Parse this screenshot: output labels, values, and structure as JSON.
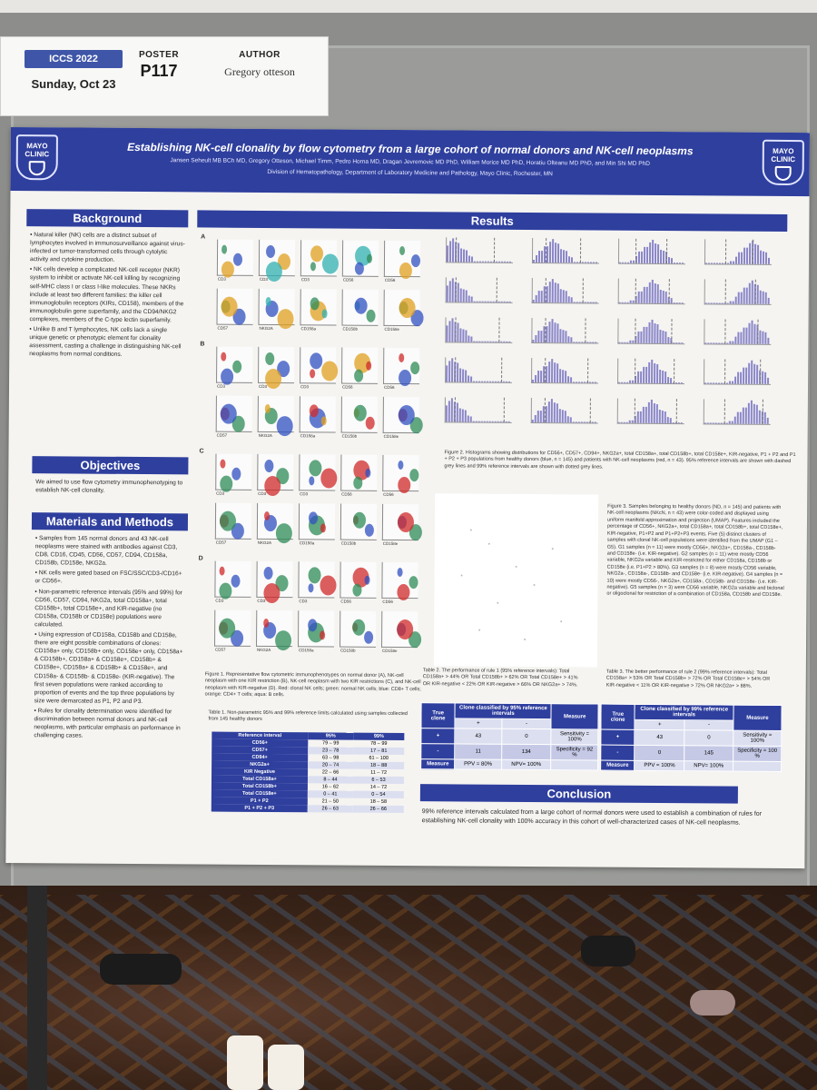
{
  "header_card": {
    "conference": "ICCS 2022",
    "date": "Sunday, Oct 23",
    "poster_label": "POSTER",
    "poster_number": "P117",
    "author_label": "AUTHOR",
    "author_name": "Gregory otteson"
  },
  "poster": {
    "logo_text": "MAYO CLINIC",
    "title": "Establishing NK-cell clonality by flow cytometry from a large cohort of normal donors and NK-cell neoplasms",
    "authors": "Jansen Seheult MB BCh MD, Gregory Otteson, Michael Timm, Pedro Horna MD, Dragan Jevremovic MD PhD, William Morice MD PhD, Horatiu Olteanu MD PhD, and Min Shi MD PhD",
    "affiliation": "Division of Hematopathology, Department of Laboratory Medicine and Pathology, Mayo Clinic, Rochester, MN",
    "background": {
      "heading": "Background",
      "bullets": [
        "Natural killer (NK) cells are a distinct subset of lymphocytes involved in immunosurveillance against virus-infected or tumor-transformed cells through cytolytic activity and cytokine production.",
        "NK cells develop a complicated NK-cell receptor (NKR) system to inhibit or activate NK-cell killing by recognizing self-MHC class I or class I-like molecules. These NKRs include at least two different families: the killer cell immunoglobulin receptors (KIRs, CD158), members of the immunoglobulin gene superfamily, and the CD94/NKG2 complexes, members of the C-type lectin superfamily.",
        "Unlike B and T lymphocytes, NK cells lack a single unique genetic or phenotypic element for clonality assessment, casting a challenge in distinguishing NK-cell neoplasms from normal conditions."
      ]
    },
    "objectives": {
      "heading": "Objectives",
      "text": "We aimed to use flow cytometry immunophenotyping to establish NK-cell clonality."
    },
    "methods": {
      "heading": "Materials and Methods",
      "bullets": [
        "Samples from 145 normal donors and 43 NK-cell neoplasms were stained with antibodies against CD3, CD8, CD16, CD45, CD56, CD57, CD94, CD158a, CD158b, CD158e, NKG2a.",
        "NK cells were gated based on FSC/SSC/CD3-/CD16+ or CD56+.",
        "Non-parametric reference intervals (95% and 99%) for CD56, CD57, CD94, NKG2a, total CD158a+, total CD158b+, total CD158e+, and KIR-negative (no CD158a, CD158b or CD158e) populations were calculated.",
        "Using expression of CD158a, CD158b and CD158e, there are eight possible combinations of clones: CD158a+ only, CD158b+ only, CD158e+ only, CD158a+ & CD158b+, CD158a+ & CD158e+, CD158b+ & CD158e+, CD158a+ & CD158b+ & CD158e+, and CD158a- & CD158b- & CD158e- (KIR-negative). The first seven populations were ranked according to proportion of events and the top three populations by size were demarcated as P1, P2 and P3.",
        "Rules for clonality determination were identified for discrimination between normal donors and NK-cell neoplasms, with particular emphasis on performance in challenging cases."
      ]
    },
    "results": {
      "heading": "Results",
      "figure1": {
        "row_labels": [
          "A",
          "B",
          "C",
          "D"
        ],
        "axis_labels_row1": [
          "CD3",
          "CD3",
          "CD3",
          "CD56",
          "CD56"
        ],
        "axis_labels_row2": [
          "CD57",
          "NKG2A",
          "CD158a",
          "CD158b",
          "CD158e"
        ],
        "caption": "Figure 1. Representative flow cytometric immunophenotypes on normal donor (A), NK-cell neoplasm with one KIR restriction (B), NK-cell neoplasm with two KIR restrictions (C), and NK-cell neoplasm with KIR-negative (D). Red: clonal NK cells; green: normal NK cells; blue: CD8+ T cells; orange: CD4+ T cells; aqua: B cells."
      },
      "table1": {
        "caption": "Table 1. Non-parametric 95% and 99% reference limits calculated using samples collected from 145 healthy donors",
        "headers": [
          "Reference interval",
          "95%",
          "99%"
        ],
        "rows": [
          [
            "CD56+",
            "79 – 99",
            "78 – 99"
          ],
          [
            "CD57+",
            "23 – 78",
            "17 – 81"
          ],
          [
            "CD94+",
            "63 – 98",
            "61 – 100"
          ],
          [
            "NKG2a+",
            "20 – 74",
            "18 – 88"
          ],
          [
            "KIR Negative",
            "22 – 66",
            "11 – 72"
          ],
          [
            "Total CD158a+",
            "8 – 44",
            "6 – 53"
          ],
          [
            "Total CD158b+",
            "16 – 62",
            "14 – 72"
          ],
          [
            "Total CD158e+",
            "0 – 41",
            "0 – 54"
          ],
          [
            "P1 + P2",
            "21 – 50",
            "18 – 58"
          ],
          [
            "P1 + P2 + P3",
            "26 – 63",
            "26 – 66"
          ]
        ]
      },
      "figure2_caption": "Figure 2. Histograms showing distributions for CD56+, CD57+, CD94+, NKG2a+, total CD158a+, total CD158b+, total CD158e+, KIR-negative, P1 + P2 and P1 + P2 + P3 populations from healthy donors (blue, n = 145) and patients with NK-cell neoplasms (red, n = 43). 95% reference intervals are shown with dashed grey lines and 99% reference intervals are shown with dotted grey lines.",
      "figure3_caption": "Figure 3. Samples belonging to healthy donors (ND, n = 145) and patients with NK-cell neoplasms (NKcN, n = 43) were color-coded and displayed using uniform manifold approximation and projection (UMAP). Features included the percentage of CD56+, NKG2a+, total CD158a+, total CD158b+, total CD158e+, KIR-negative, P1+P2 and P1+P2+P3 events. Five (5) distinct clusters of samples with clonal NK-cell populations were identified from the UMAP (G1 – G5). G1 samples (n = 11) were mostly CD56+, NKG2a+, CD158a-, CD158b- and CD158e- (i.e. KIR-negative). G2 samples (n = 11) were mostly CD56 variable, NKG2a variable and KIR-restricted for either CD158a, CD158b or CD158e (i.e. P1+P2 > 80%). G3 samples (n = 8) were mostly CD56 variable, NKG2a-, CD158a-, CD158b- and CD158e- (i.e. KIR-negative). G4 samples (n = 10) were mostly CD56-, NKG2a+, CD158a-, CD158b- and CD158e- (i.e. KIR-negative). G5 samples (n = 3) were CD56 variable, NKG2a variable and biclonal or oligoclonal for restriction of a combination of CD158a, CD158b and CD158e.",
      "table2": {
        "caption": "Table 2. The performance of rule 1 (95% reference intervals): Total CD158a+ > 44% OR Total CD158b+ > 62% OR Total CD158e+ > 41% OR KIR-negative < 22% OR KIR-negative > 66% OR NKG2a+ > 74%.",
        "col1": "True clone",
        "col2": "Clone classified by 95% reference intervals",
        "col3": "Measure",
        "plus": "+",
        "minus": "-",
        "r1": [
          "+",
          "43",
          "0",
          "Sensitivity = 100%"
        ],
        "r2": [
          "-",
          "11",
          "134",
          "Specificity = 92 %"
        ],
        "r3": [
          "Measure",
          "PPV = 80%",
          "NPV= 100%"
        ]
      },
      "table3": {
        "caption": "Table 3. The better performance of rule 2 (99% reference intervals): Total CD158a+ > 53% OR Total CD158b+ > 72% OR Total CD158e+ > 54% OR KIR-negative < 11% OR KIR-negative > 72% OR NKG2a+ > 88%.",
        "col1": "True clone",
        "col2": "Clone classified by 99% reference intervals",
        "col3": "Measure",
        "plus": "+",
        "minus": "-",
        "r1": [
          "+",
          "43",
          "0",
          "Sensitivity = 100%"
        ],
        "r2": [
          "-",
          "0",
          "145",
          "Specificity = 100 %"
        ],
        "r3": [
          "Measure",
          "PPV = 100%",
          "NPV= 100%"
        ]
      }
    },
    "conclusion": {
      "heading": "Conclusion",
      "text": "99% reference intervals calculated from a large cohort of normal donors were used to establish a combination of rules for establishing NK-cell clonality with 100% accuracy in this cohort of well-characterized cases of NK-cell neoplasms."
    }
  },
  "colors": {
    "poster_blue": "#2f3f9e",
    "badge_blue": "#3f56a8",
    "histogram_purple": "#8a86c9"
  }
}
